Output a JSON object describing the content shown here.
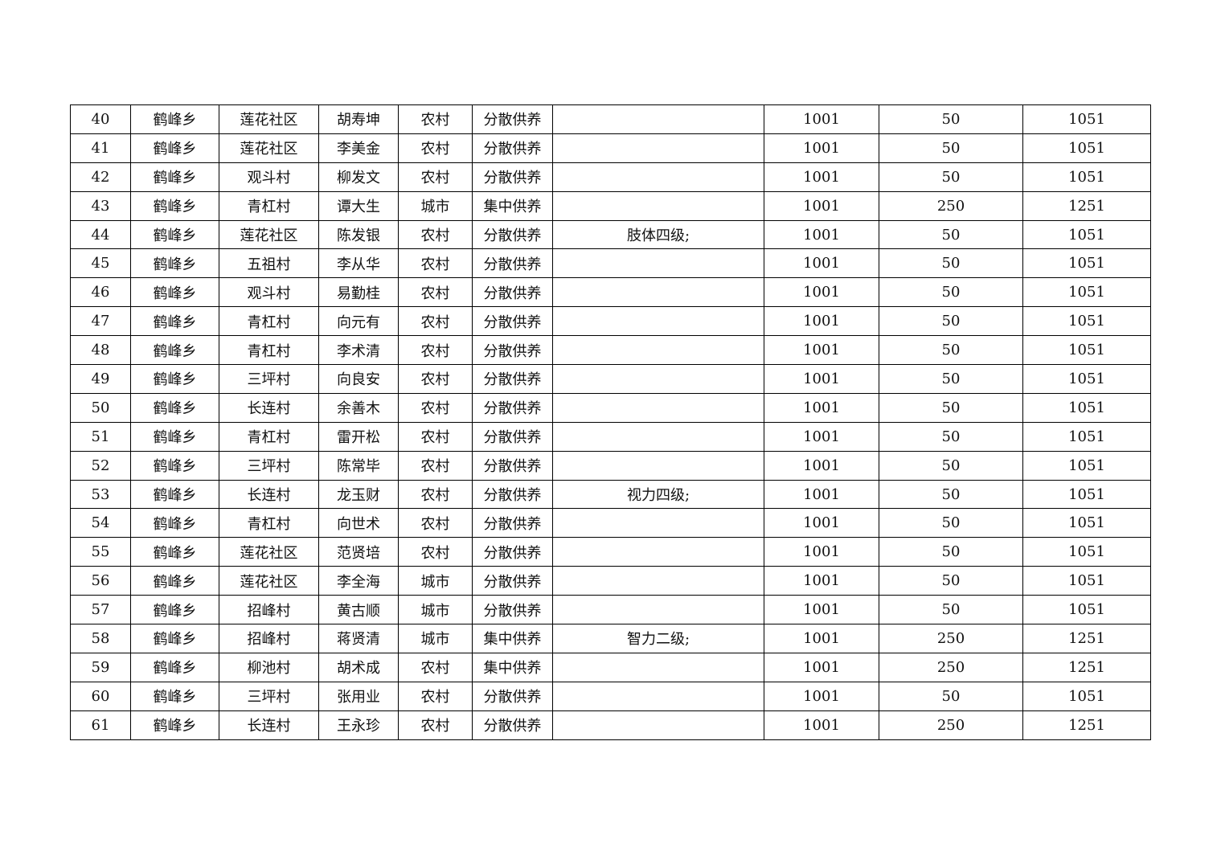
{
  "rows": [
    [
      "40",
      "鹤峰乡",
      "莲花社区",
      "胡寿坤",
      "农村",
      "分散供养",
      "",
      "1001",
      "50",
      "1051"
    ],
    [
      "41",
      "鹤峰乡",
      "莲花社区",
      "李美金",
      "农村",
      "分散供养",
      "",
      "1001",
      "50",
      "1051"
    ],
    [
      "42",
      "鹤峰乡",
      "观斗村",
      "柳发文",
      "农村",
      "分散供养",
      "",
      "1001",
      "50",
      "1051"
    ],
    [
      "43",
      "鹤峰乡",
      "青杠村",
      "谭大生",
      "城市",
      "集中供养",
      "",
      "1001",
      "250",
      "1251"
    ],
    [
      "44",
      "鹤峰乡",
      "莲花社区",
      "陈发银",
      "农村",
      "分散供养",
      "肢体四级;",
      "1001",
      "50",
      "1051"
    ],
    [
      "45",
      "鹤峰乡",
      "五祖村",
      "李从华",
      "农村",
      "分散供养",
      "",
      "1001",
      "50",
      "1051"
    ],
    [
      "46",
      "鹤峰乡",
      "观斗村",
      "易勤桂",
      "农村",
      "分散供养",
      "",
      "1001",
      "50",
      "1051"
    ],
    [
      "47",
      "鹤峰乡",
      "青杠村",
      "向元有",
      "农村",
      "分散供养",
      "",
      "1001",
      "50",
      "1051"
    ],
    [
      "48",
      "鹤峰乡",
      "青杠村",
      "李术清",
      "农村",
      "分散供养",
      "",
      "1001",
      "50",
      "1051"
    ],
    [
      "49",
      "鹤峰乡",
      "三坪村",
      "向良安",
      "农村",
      "分散供养",
      "",
      "1001",
      "50",
      "1051"
    ],
    [
      "50",
      "鹤峰乡",
      "长连村",
      "余善木",
      "农村",
      "分散供养",
      "",
      "1001",
      "50",
      "1051"
    ],
    [
      "51",
      "鹤峰乡",
      "青杠村",
      "雷开松",
      "农村",
      "分散供养",
      "",
      "1001",
      "50",
      "1051"
    ],
    [
      "52",
      "鹤峰乡",
      "三坪村",
      "陈常毕",
      "农村",
      "分散供养",
      "",
      "1001",
      "50",
      "1051"
    ],
    [
      "53",
      "鹤峰乡",
      "长连村",
      "龙玉财",
      "农村",
      "分散供养",
      "视力四级;",
      "1001",
      "50",
      "1051"
    ],
    [
      "54",
      "鹤峰乡",
      "青杠村",
      "向世术",
      "农村",
      "分散供养",
      "",
      "1001",
      "50",
      "1051"
    ],
    [
      "55",
      "鹤峰乡",
      "莲花社区",
      "范贤培",
      "农村",
      "分散供养",
      "",
      "1001",
      "50",
      "1051"
    ],
    [
      "56",
      "鹤峰乡",
      "莲花社区",
      "李全海",
      "城市",
      "分散供养",
      "",
      "1001",
      "50",
      "1051"
    ],
    [
      "57",
      "鹤峰乡",
      "招峰村",
      "黄古顺",
      "城市",
      "分散供养",
      "",
      "1001",
      "50",
      "1051"
    ],
    [
      "58",
      "鹤峰乡",
      "招峰村",
      "蒋贤清",
      "城市",
      "集中供养",
      "智力二级;",
      "1001",
      "250",
      "1251"
    ],
    [
      "59",
      "鹤峰乡",
      "柳池村",
      "胡术成",
      "农村",
      "集中供养",
      "",
      "1001",
      "250",
      "1251"
    ],
    [
      "60",
      "鹤峰乡",
      "三坪村",
      "张用业",
      "农村",
      "分散供养",
      "",
      "1001",
      "50",
      "1051"
    ],
    [
      "61",
      "鹤峰乡",
      "长连村",
      "王永珍",
      "农村",
      "分散供养",
      "",
      "1001",
      "250",
      "1251"
    ]
  ]
}
